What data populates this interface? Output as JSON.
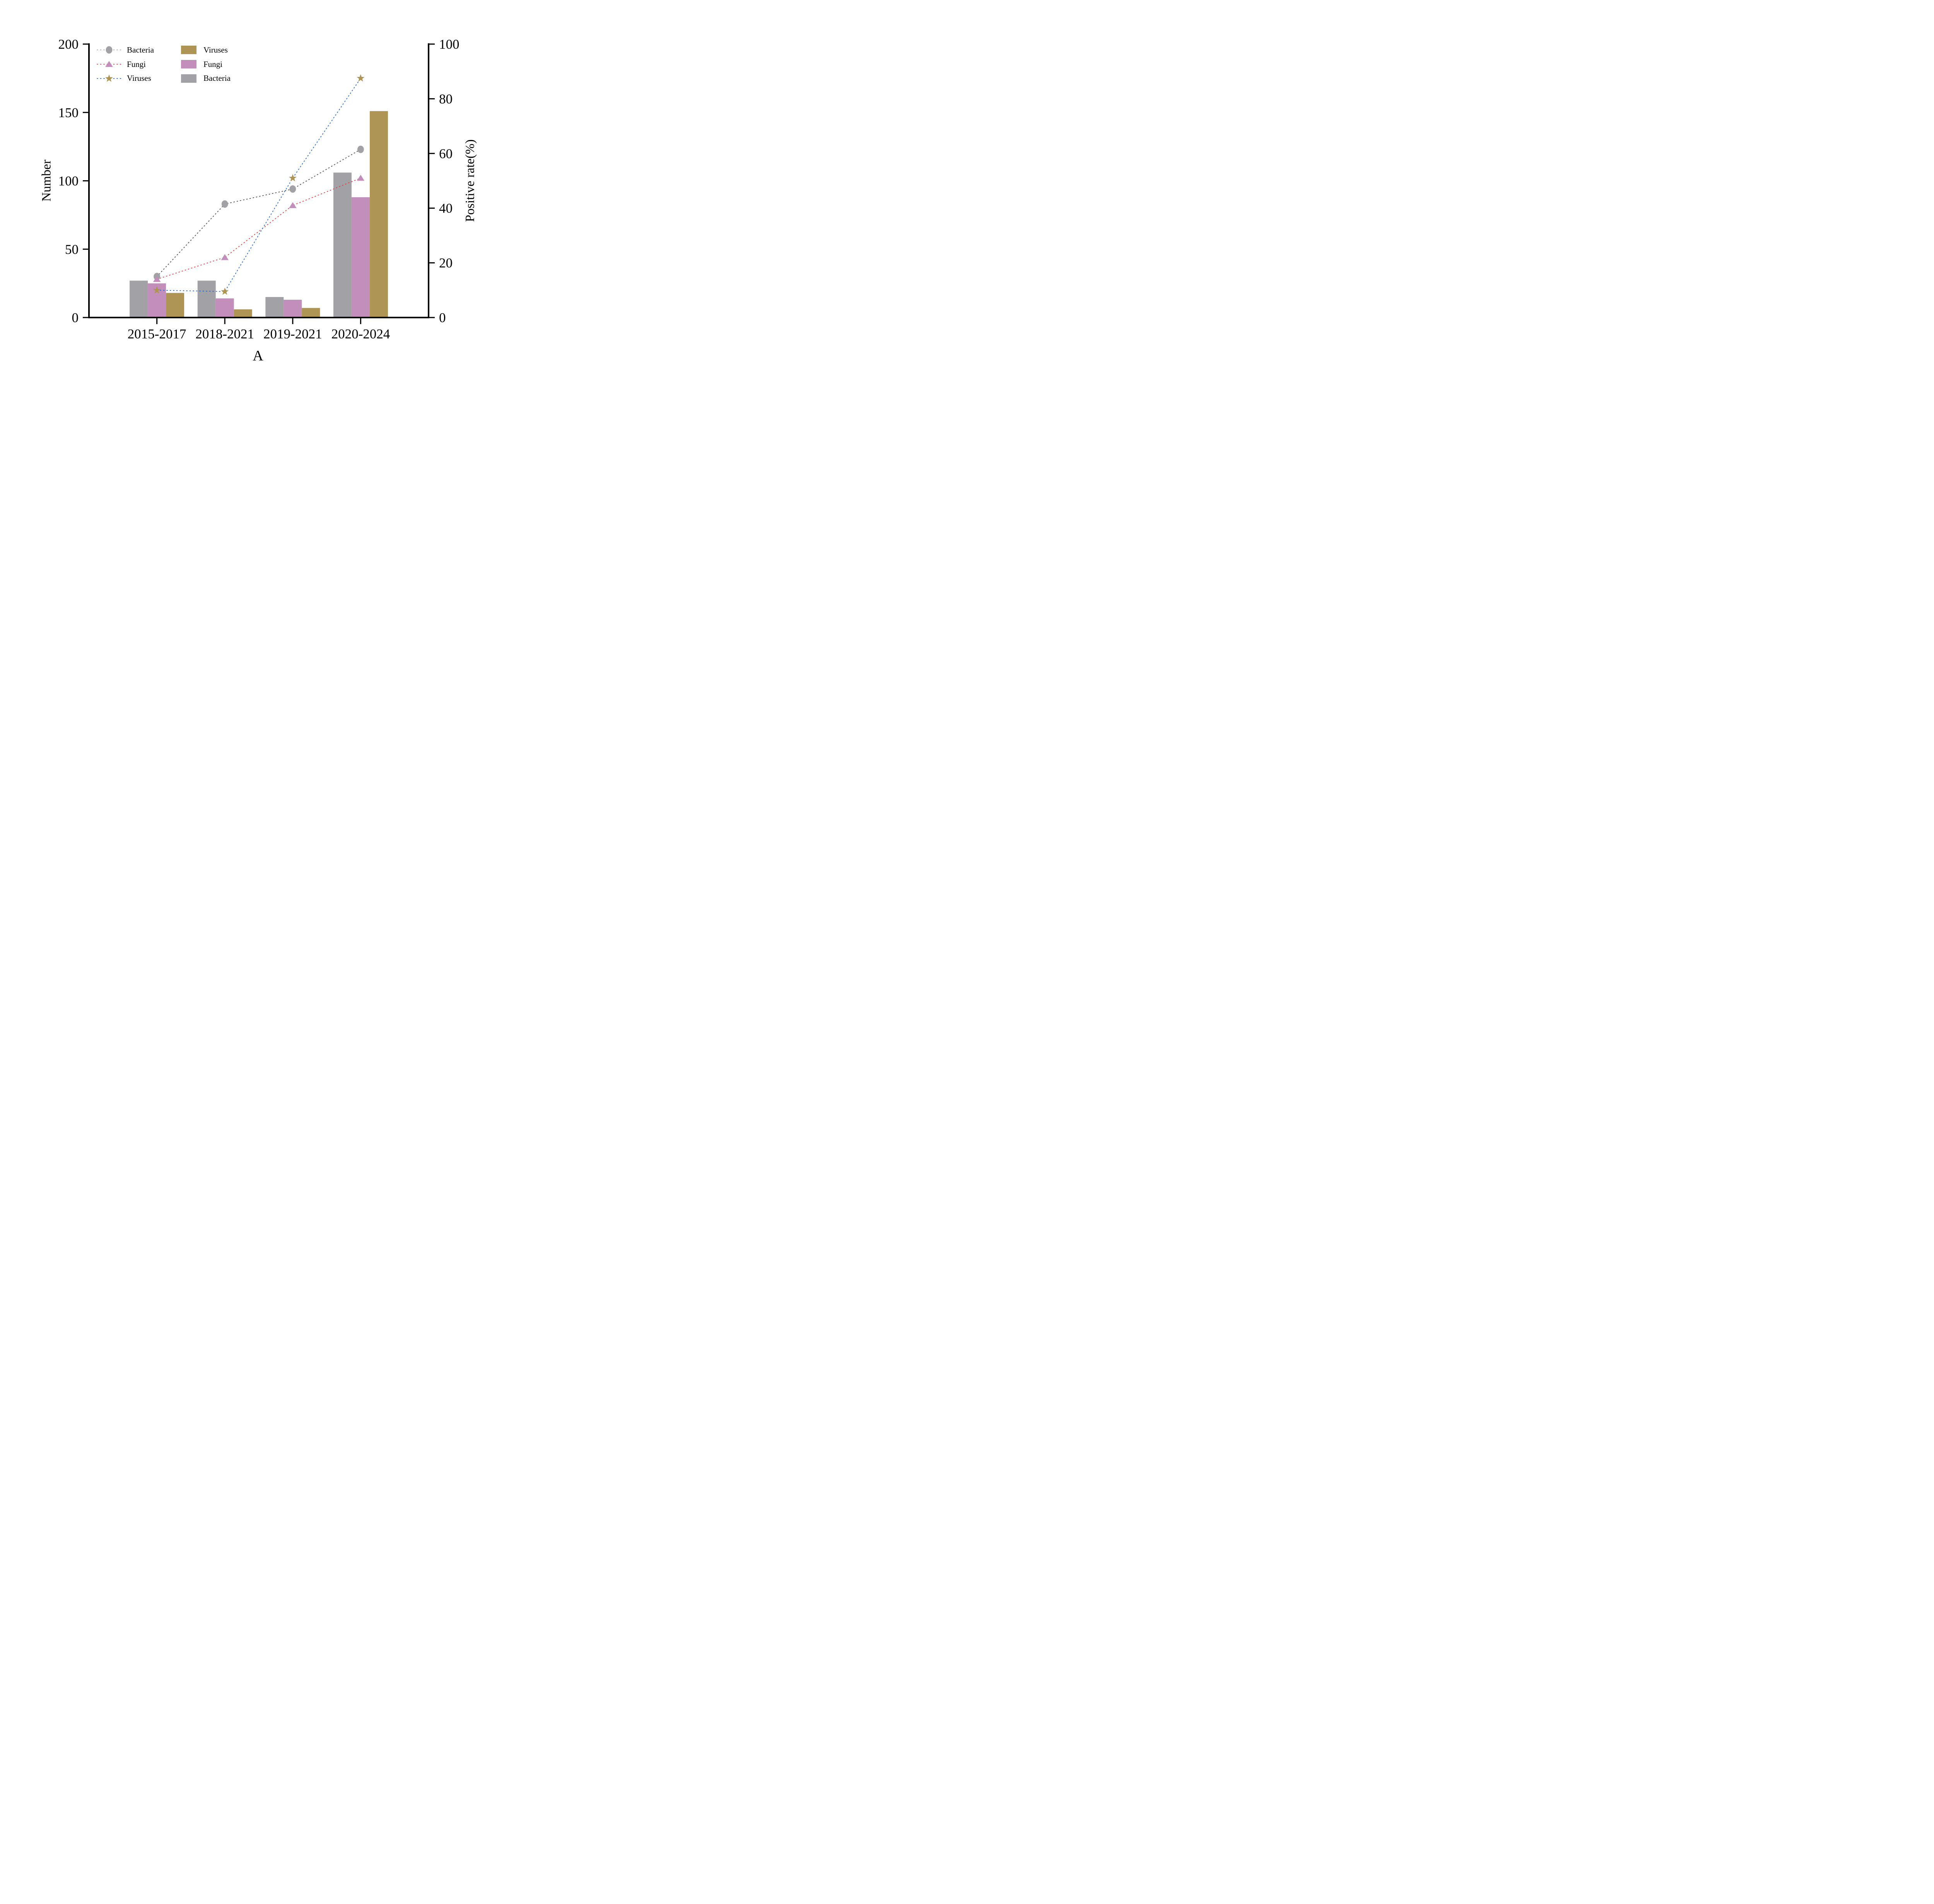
{
  "figure": {
    "caption": "A",
    "background": "#ffffff"
  },
  "axes": {
    "left": {
      "label": "Number",
      "range": [
        0,
        200
      ],
      "ticks": [
        0,
        50,
        100,
        150,
        200
      ]
    },
    "right": {
      "label": "Positive rate(%)",
      "range": [
        0,
        100
      ],
      "ticks": [
        0,
        20,
        40,
        60,
        80,
        100
      ]
    },
    "x": {
      "categories": [
        "2015-2017",
        "2018-2021",
        "2019-2021",
        "2020-2024"
      ]
    }
  },
  "chart_data": {
    "type": "combo-bar-line",
    "categories": [
      "2015-2017",
      "2018-2021",
      "2019-2021",
      "2020-2024"
    ],
    "title": "",
    "xlabel": "A",
    "ylabel_left": "Number",
    "ylabel_right": "Positive rate(%)",
    "ylim_left": [
      0,
      200
    ],
    "ylim_right": [
      0,
      100
    ],
    "grid": false,
    "legend_position": "top-left-inside",
    "bar_series": [
      {
        "name": "Bacteria",
        "axis": "left",
        "color": "#a2a2a6",
        "values": [
          27,
          27,
          15,
          106
        ]
      },
      {
        "name": "Fungi",
        "axis": "left",
        "color": "#c28fba",
        "values": [
          25,
          14,
          13,
          88
        ]
      },
      {
        "name": "Viruses",
        "axis": "left",
        "color": "#ae9556",
        "values": [
          18,
          6,
          7,
          151
        ]
      }
    ],
    "line_series": [
      {
        "name": "Bacteria",
        "axis": "right",
        "marker": "circle",
        "marker_color": "#a2a2a6",
        "line_color": "#474747",
        "values": [
          15,
          41.5,
          47,
          61.5
        ]
      },
      {
        "name": "Fungi",
        "axis": "right",
        "marker": "triangle",
        "marker_color": "#c28fba",
        "line_color": "#e23b3b",
        "values": [
          14,
          22,
          41,
          51
        ]
      },
      {
        "name": "Viruses",
        "axis": "right",
        "marker": "star",
        "marker_color": "#ae9556",
        "line_color": "#1f63c8",
        "values": [
          10,
          9.5,
          51,
          87.5
        ]
      }
    ]
  },
  "legend": {
    "line_items": [
      {
        "label": "Bacteria",
        "marker": "circle",
        "marker_color": "#a2a2a6",
        "line_color": "#a6a6a6"
      },
      {
        "label": "Fungi",
        "marker": "triangle",
        "marker_color": "#c28fba",
        "line_color": "#e23b3b"
      },
      {
        "label": "Viruses",
        "marker": "star",
        "marker_color": "#ae9556",
        "line_color": "#1f63c8"
      }
    ],
    "bar_items": [
      {
        "label": "Viruses",
        "color": "#ae9556"
      },
      {
        "label": "Fungi",
        "color": "#c28fba"
      },
      {
        "label": "Bacteria",
        "color": "#a2a2a6"
      }
    ]
  },
  "colors": {
    "axis": "#000000",
    "bar_gray": "#a2a2a6",
    "bar_pink": "#c28fba",
    "bar_gold": "#ae9556",
    "line_dark": "#474747",
    "line_red": "#e23b3b",
    "line_blue": "#1f63c8"
  }
}
